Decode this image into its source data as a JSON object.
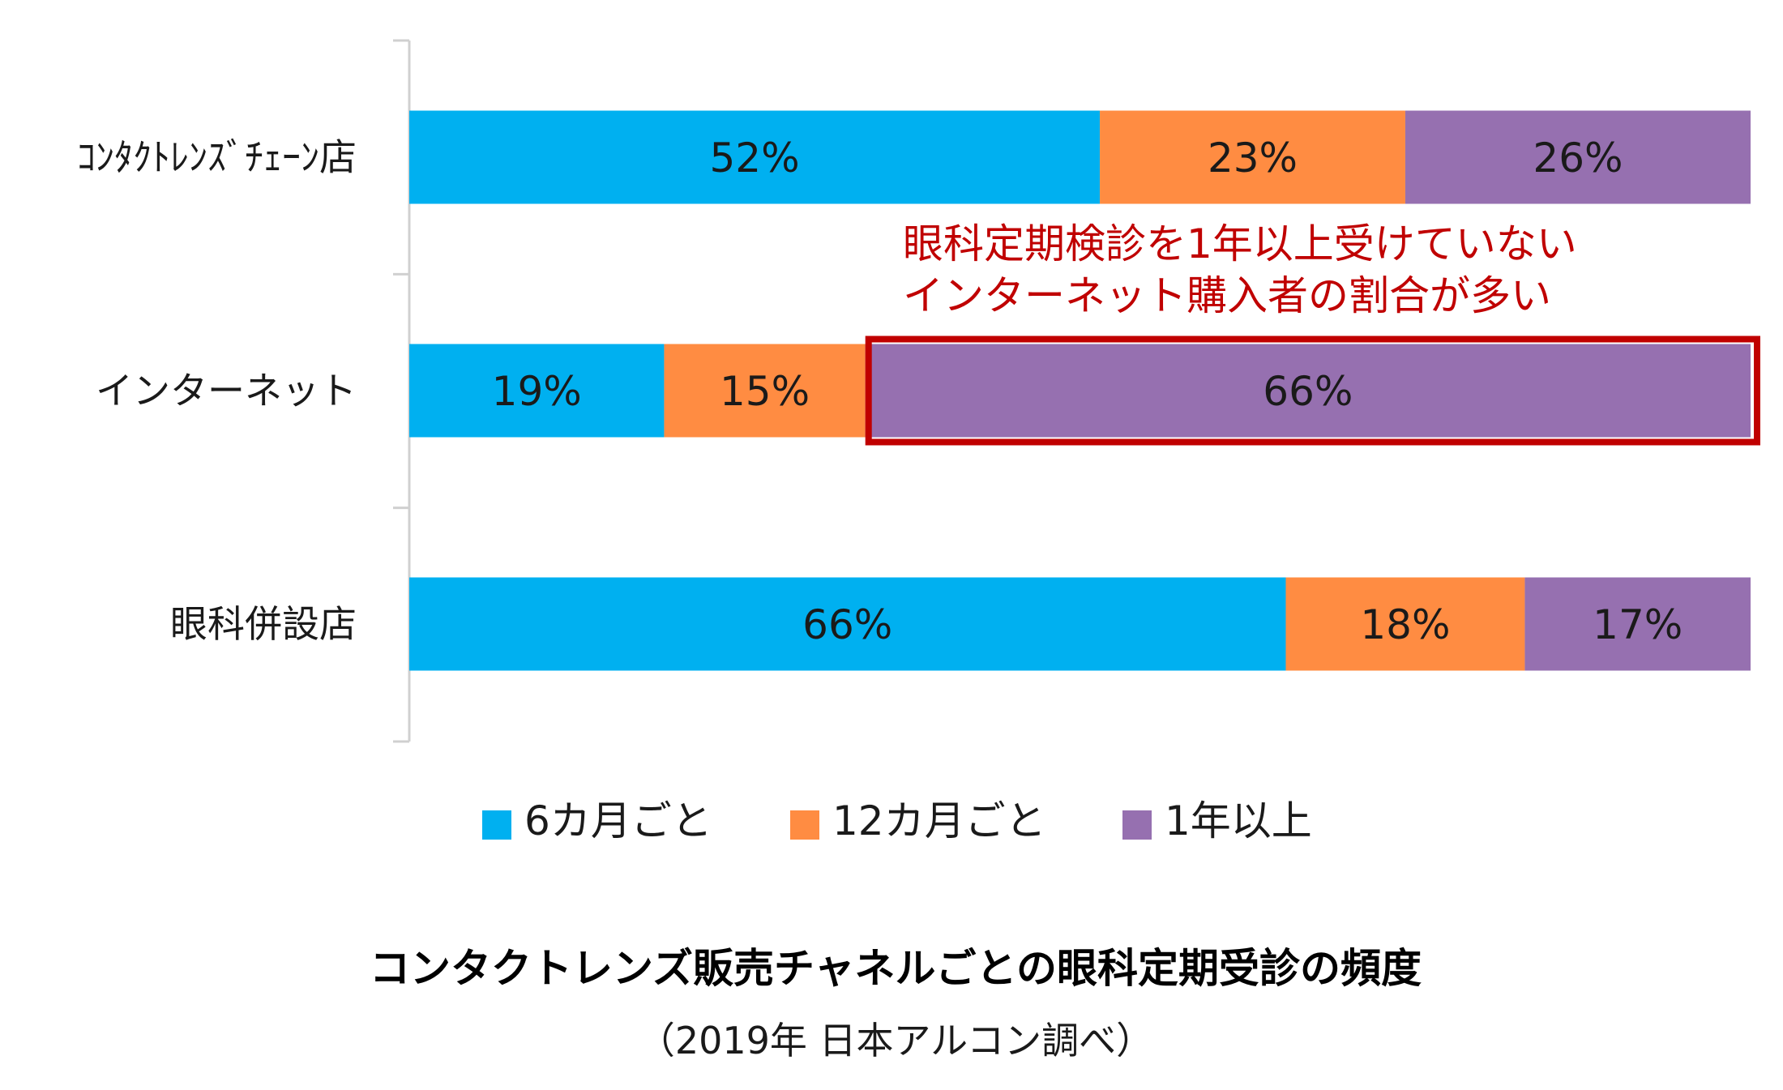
{
  "chart_data": {
    "type": "bar",
    "orientation": "horizontal",
    "stacked": true,
    "title": "コンタクトレンズ販売チャネルごとの眼科定期受診の頻度",
    "subtitle": "（2019年 日本アルコン調べ）",
    "categories": [
      "ｺﾝﾀｸﾄﾚﾝｽﾞﾁｪｰﾝ店",
      "インターネット",
      "眼科併設店"
    ],
    "series": [
      {
        "name": "6カ月ごと",
        "color": "#00b0f0",
        "values": [
          52,
          19,
          66
        ]
      },
      {
        "name": "12カ月ごと",
        "color": "#ff8c42",
        "values": [
          23,
          15,
          18
        ]
      },
      {
        "name": "1年以上",
        "color": "#9670b0",
        "values": [
          26,
          66,
          17
        ]
      }
    ],
    "data_labels": [
      [
        "52%",
        "19%",
        "66%"
      ],
      [
        "23%",
        "15%",
        "18%"
      ],
      [
        "26%",
        "66%",
        "17%"
      ]
    ],
    "xlim": [
      0,
      100
    ],
    "legend_position": "bottom",
    "annotation": {
      "lines": [
        "眼科定期検診を1年以上受けていない",
        "インターネット購入者の割合が多い"
      ],
      "color": "#c00000",
      "highlight": {
        "category_index": 1,
        "series_index": 2
      }
    }
  }
}
